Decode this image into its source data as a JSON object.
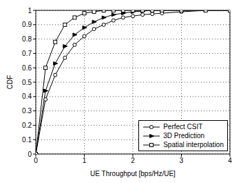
{
  "chart_data": {
    "type": "line",
    "x_label": "UE Throughput [bps/Hz/UE]",
    "y_label": "CDF",
    "x": [
      0,
      0.2,
      0.4,
      0.6,
      0.8,
      1.0,
      1.2,
      1.4,
      1.6,
      1.8,
      2.0,
      2.2,
      2.4,
      2.6,
      3.0,
      3.5,
      4.0
    ],
    "series": [
      {
        "name": "Perfect CSIT",
        "color": "#000000",
        "marker": "circle",
        "values": [
          0,
          0.38,
          0.55,
          0.67,
          0.76,
          0.82,
          0.87,
          0.9,
          0.93,
          0.95,
          0.96,
          0.97,
          0.975,
          0.98,
          0.99,
          1.0,
          1.0
        ]
      },
      {
        "name": "3D Prediction",
        "color": "#000000",
        "marker": "triangle-right",
        "values": [
          0,
          0.44,
          0.63,
          0.75,
          0.83,
          0.88,
          0.92,
          0.95,
          0.97,
          0.98,
          0.99,
          0.995,
          1.0,
          1.0,
          1.0,
          1.0,
          1.0
        ]
      },
      {
        "name": "Spatial interpolation",
        "color": "#000000",
        "marker": "square",
        "values": [
          0,
          0.6,
          0.78,
          0.9,
          0.95,
          0.98,
          0.99,
          1.0,
          1.0,
          1.0,
          1.0,
          1.0,
          1.0,
          1.0,
          1.0,
          1.0,
          1.0
        ]
      }
    ],
    "xlim": [
      0,
      4
    ],
    "xticks": [
      0,
      1,
      2,
      3,
      4
    ],
    "ylim": [
      0,
      1
    ],
    "yticks": [
      0,
      0.1,
      0.2,
      0.3,
      0.4,
      0.5,
      0.6,
      0.7,
      0.8,
      0.9,
      1
    ],
    "grid": true,
    "legend": "lower right"
  }
}
